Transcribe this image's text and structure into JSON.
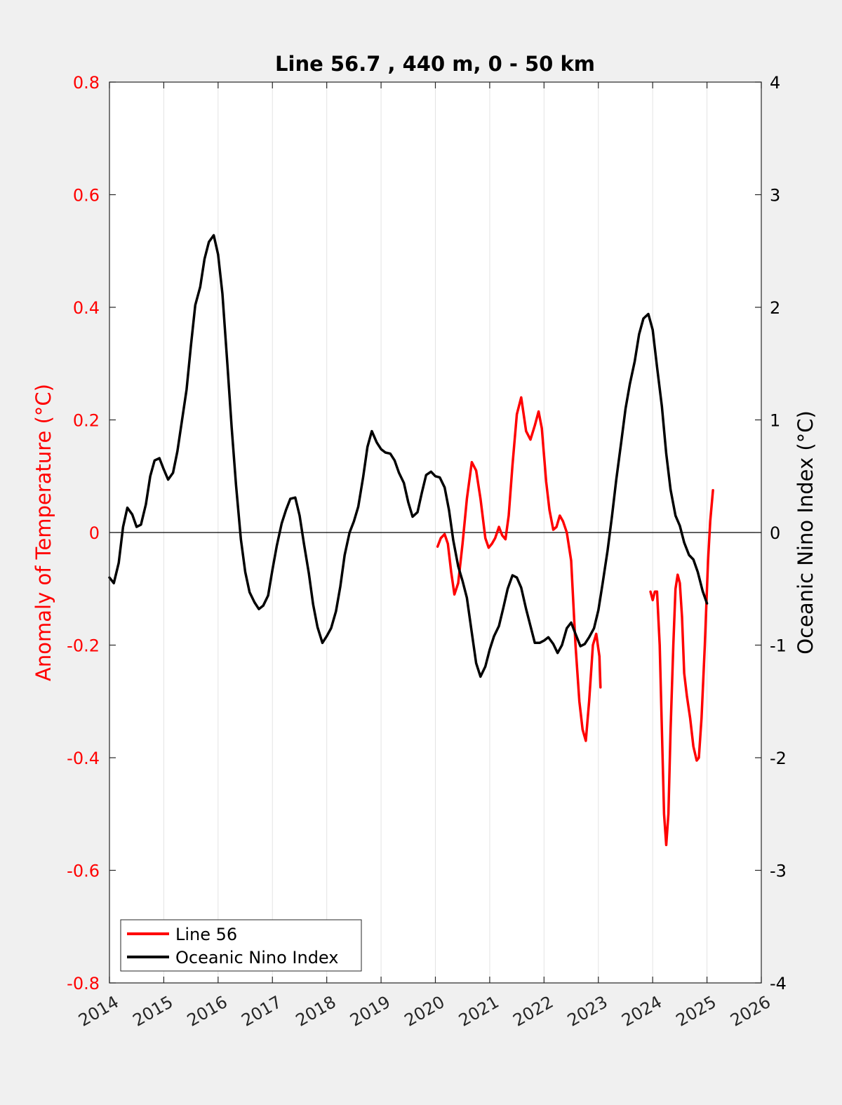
{
  "chart_data": {
    "type": "line",
    "title": "Line 56.7 , 440 m, 0 - 50 km",
    "xlabel": "",
    "ylabel_left": "Anomaly of Temperature (°C)",
    "ylabel_right": "Oceanic Nino Index (°C)",
    "xlim": [
      2014,
      2026
    ],
    "ylim_left": [
      -0.8,
      0.8
    ],
    "ylim_right": [
      -4,
      4
    ],
    "x_ticks": [
      "2014",
      "2015",
      "2016",
      "2017",
      "2018",
      "2019",
      "2020",
      "2021",
      "2022",
      "2023",
      "2024",
      "2025",
      "2026"
    ],
    "y_ticks_left": [
      "-0.8",
      "-0.6",
      "-0.4",
      "-0.2",
      "0",
      "0.2",
      "0.4",
      "0.6",
      "0.8"
    ],
    "y_ticks_right": [
      "-4",
      "-3",
      "-2",
      "-1",
      "0",
      "1",
      "2",
      "3",
      "4"
    ],
    "grid": "vertical",
    "zero_line": true,
    "legend_position": "bottom-left",
    "colors": {
      "left_axis": "#ff0000",
      "right_axis": "#000000",
      "line56": "#ff0000",
      "oni": "#000000"
    },
    "series": [
      {
        "name": "Line 56",
        "axis": "left",
        "segments": [
          [
            [
              2020.04,
              -0.025
            ],
            [
              2020.1,
              -0.01
            ],
            [
              2020.17,
              -0.003
            ],
            [
              2020.23,
              -0.02
            ],
            [
              2020.29,
              -0.07
            ],
            [
              2020.35,
              -0.11
            ],
            [
              2020.42,
              -0.09
            ],
            [
              2020.5,
              -0.02
            ],
            [
              2020.58,
              0.06
            ],
            [
              2020.67,
              0.125
            ],
            [
              2020.75,
              0.11
            ],
            [
              2020.83,
              0.06
            ],
            [
              2020.92,
              -0.01
            ],
            [
              2020.98,
              -0.027
            ],
            [
              2021.04,
              -0.02
            ],
            [
              2021.1,
              -0.01
            ],
            [
              2021.17,
              0.01
            ],
            [
              2021.23,
              -0.005
            ],
            [
              2021.29,
              -0.012
            ],
            [
              2021.35,
              0.03
            ],
            [
              2021.42,
              0.12
            ],
            [
              2021.5,
              0.21
            ],
            [
              2021.58,
              0.24
            ],
            [
              2021.67,
              0.18
            ],
            [
              2021.75,
              0.165
            ],
            [
              2021.83,
              0.19
            ],
            [
              2021.9,
              0.215
            ],
            [
              2021.96,
              0.185
            ],
            [
              2022.04,
              0.09
            ],
            [
              2022.1,
              0.04
            ],
            [
              2022.17,
              0.005
            ],
            [
              2022.23,
              0.01
            ],
            [
              2022.29,
              0.03
            ],
            [
              2022.35,
              0.02
            ],
            [
              2022.42,
              0.0
            ],
            [
              2022.5,
              -0.05
            ],
            [
              2022.58,
              -0.2
            ],
            [
              2022.65,
              -0.3
            ],
            [
              2022.71,
              -0.35
            ],
            [
              2022.77,
              -0.37
            ],
            [
              2022.83,
              -0.3
            ],
            [
              2022.9,
              -0.2
            ],
            [
              2022.96,
              -0.18
            ],
            [
              2023.02,
              -0.22
            ],
            [
              2023.04,
              -0.275
            ]
          ],
          [
            [
              2023.96,
              -0.105
            ],
            [
              2024.0,
              -0.12
            ],
            [
              2024.04,
              -0.105
            ],
            [
              2024.08,
              -0.105
            ],
            [
              2024.13,
              -0.2
            ],
            [
              2024.17,
              -0.35
            ],
            [
              2024.21,
              -0.5
            ],
            [
              2024.25,
              -0.555
            ],
            [
              2024.29,
              -0.5
            ],
            [
              2024.33,
              -0.35
            ],
            [
              2024.38,
              -0.2
            ],
            [
              2024.42,
              -0.1
            ],
            [
              2024.46,
              -0.075
            ],
            [
              2024.5,
              -0.09
            ],
            [
              2024.54,
              -0.15
            ],
            [
              2024.58,
              -0.25
            ],
            [
              2024.63,
              -0.29
            ],
            [
              2024.69,
              -0.33
            ],
            [
              2024.75,
              -0.38
            ],
            [
              2024.81,
              -0.405
            ],
            [
              2024.85,
              -0.4
            ],
            [
              2024.9,
              -0.33
            ],
            [
              2024.96,
              -0.2
            ],
            [
              2025.02,
              -0.05
            ],
            [
              2025.06,
              0.02
            ],
            [
              2025.11,
              0.075
            ]
          ]
        ]
      },
      {
        "name": "Oceanic Nino Index",
        "axis": "right",
        "segments": [
          [
            [
              2014.0,
              -0.4
            ],
            [
              2014.08,
              -0.45
            ],
            [
              2014.17,
              -0.27
            ],
            [
              2014.25,
              0.05
            ],
            [
              2014.33,
              0.22
            ],
            [
              2014.42,
              0.16
            ],
            [
              2014.5,
              0.05
            ],
            [
              2014.58,
              0.07
            ],
            [
              2014.67,
              0.25
            ],
            [
              2014.75,
              0.5
            ],
            [
              2014.83,
              0.64
            ],
            [
              2014.92,
              0.66
            ],
            [
              2015.0,
              0.56
            ],
            [
              2015.08,
              0.47
            ],
            [
              2015.17,
              0.53
            ],
            [
              2015.25,
              0.72
            ],
            [
              2015.33,
              0.98
            ],
            [
              2015.42,
              1.27
            ],
            [
              2015.5,
              1.66
            ],
            [
              2015.58,
              2.02
            ],
            [
              2015.67,
              2.18
            ],
            [
              2015.75,
              2.43
            ],
            [
              2015.83,
              2.58
            ],
            [
              2015.92,
              2.64
            ],
            [
              2016.0,
              2.47
            ],
            [
              2016.08,
              2.12
            ],
            [
              2016.17,
              1.5
            ],
            [
              2016.25,
              0.93
            ],
            [
              2016.33,
              0.42
            ],
            [
              2016.42,
              -0.06
            ],
            [
              2016.5,
              -0.35
            ],
            [
              2016.58,
              -0.53
            ],
            [
              2016.67,
              -0.62
            ],
            [
              2016.75,
              -0.68
            ],
            [
              2016.83,
              -0.65
            ],
            [
              2016.92,
              -0.56
            ],
            [
              2017.0,
              -0.33
            ],
            [
              2017.08,
              -0.12
            ],
            [
              2017.17,
              0.08
            ],
            [
              2017.25,
              0.2
            ],
            [
              2017.33,
              0.3
            ],
            [
              2017.42,
              0.31
            ],
            [
              2017.5,
              0.15
            ],
            [
              2017.58,
              -0.1
            ],
            [
              2017.67,
              -0.36
            ],
            [
              2017.75,
              -0.64
            ],
            [
              2017.83,
              -0.84
            ],
            [
              2017.92,
              -0.98
            ],
            [
              2018.0,
              -0.92
            ],
            [
              2018.08,
              -0.85
            ],
            [
              2018.17,
              -0.7
            ],
            [
              2018.25,
              -0.48
            ],
            [
              2018.33,
              -0.2
            ],
            [
              2018.42,
              0.0
            ],
            [
              2018.5,
              0.1
            ],
            [
              2018.58,
              0.23
            ],
            [
              2018.67,
              0.49
            ],
            [
              2018.75,
              0.76
            ],
            [
              2018.83,
              0.9
            ],
            [
              2018.92,
              0.8
            ],
            [
              2019.0,
              0.74
            ],
            [
              2019.08,
              0.71
            ],
            [
              2019.17,
              0.7
            ],
            [
              2019.25,
              0.64
            ],
            [
              2019.33,
              0.53
            ],
            [
              2019.42,
              0.44
            ],
            [
              2019.5,
              0.27
            ],
            [
              2019.58,
              0.14
            ],
            [
              2019.67,
              0.18
            ],
            [
              2019.75,
              0.35
            ],
            [
              2019.83,
              0.51
            ],
            [
              2019.92,
              0.54
            ],
            [
              2020.0,
              0.5
            ],
            [
              2020.08,
              0.49
            ],
            [
              2020.17,
              0.4
            ],
            [
              2020.25,
              0.2
            ],
            [
              2020.33,
              -0.07
            ],
            [
              2020.42,
              -0.3
            ],
            [
              2020.5,
              -0.43
            ],
            [
              2020.58,
              -0.58
            ],
            [
              2020.67,
              -0.89
            ],
            [
              2020.75,
              -1.16
            ],
            [
              2020.83,
              -1.28
            ],
            [
              2020.92,
              -1.19
            ],
            [
              2021.0,
              -1.04
            ],
            [
              2021.08,
              -0.92
            ],
            [
              2021.17,
              -0.83
            ],
            [
              2021.25,
              -0.67
            ],
            [
              2021.33,
              -0.5
            ],
            [
              2021.42,
              -0.38
            ],
            [
              2021.5,
              -0.4
            ],
            [
              2021.58,
              -0.49
            ],
            [
              2021.67,
              -0.68
            ],
            [
              2021.75,
              -0.83
            ],
            [
              2021.83,
              -0.98
            ],
            [
              2021.92,
              -0.98
            ],
            [
              2022.0,
              -0.96
            ],
            [
              2022.08,
              -0.93
            ],
            [
              2022.17,
              -0.99
            ],
            [
              2022.25,
              -1.07
            ],
            [
              2022.33,
              -1.0
            ],
            [
              2022.42,
              -0.85
            ],
            [
              2022.5,
              -0.8
            ],
            [
              2022.58,
              -0.9
            ],
            [
              2022.67,
              -1.01
            ],
            [
              2022.75,
              -0.99
            ],
            [
              2022.83,
              -0.93
            ],
            [
              2022.92,
              -0.85
            ],
            [
              2023.0,
              -0.69
            ],
            [
              2023.08,
              -0.45
            ],
            [
              2023.17,
              -0.16
            ],
            [
              2023.25,
              0.14
            ],
            [
              2023.33,
              0.47
            ],
            [
              2023.42,
              0.8
            ],
            [
              2023.5,
              1.1
            ],
            [
              2023.58,
              1.32
            ],
            [
              2023.67,
              1.52
            ],
            [
              2023.75,
              1.76
            ],
            [
              2023.83,
              1.9
            ],
            [
              2023.92,
              1.94
            ],
            [
              2024.0,
              1.8
            ],
            [
              2024.08,
              1.47
            ],
            [
              2024.17,
              1.12
            ],
            [
              2024.25,
              0.7
            ],
            [
              2024.33,
              0.38
            ],
            [
              2024.42,
              0.15
            ],
            [
              2024.5,
              0.06
            ],
            [
              2024.58,
              -0.09
            ],
            [
              2024.67,
              -0.2
            ],
            [
              2024.75,
              -0.24
            ],
            [
              2024.83,
              -0.35
            ],
            [
              2024.92,
              -0.52
            ],
            [
              2025.0,
              -0.63
            ]
          ]
        ]
      }
    ]
  }
}
